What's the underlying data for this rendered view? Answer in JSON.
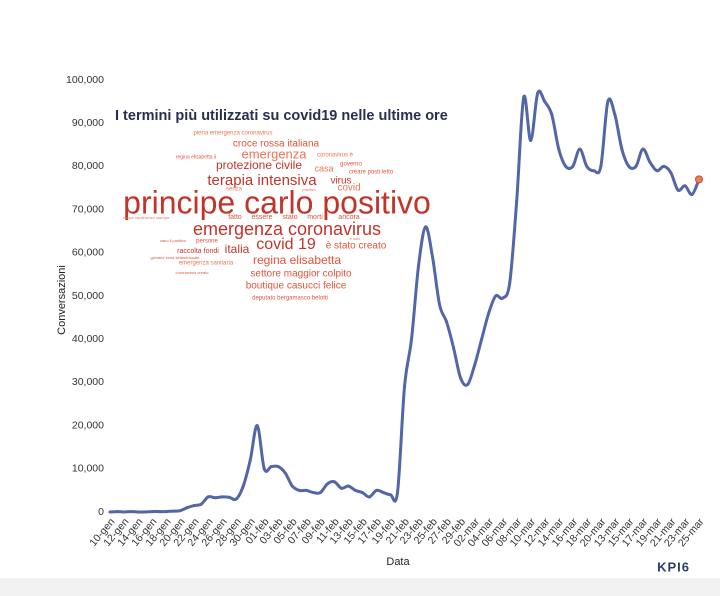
{
  "chart_data": {
    "type": "line",
    "y_label": "Conversazioni",
    "x_label": "Data",
    "categories": [
      "10-gen",
      null,
      "12-gen",
      null,
      "14-gen",
      null,
      "16-gen",
      null,
      "18-gen",
      null,
      "20-gen",
      null,
      "22-gen",
      null,
      "24-gen",
      null,
      "26-gen",
      null,
      "28-gen",
      null,
      "30-gen",
      null,
      "01-feb",
      null,
      "03-feb",
      null,
      "05-feb",
      null,
      "07-feb",
      null,
      "09-feb",
      null,
      "11-feb",
      null,
      "13-feb",
      null,
      "15-feb",
      null,
      "17-feb",
      null,
      "19-feb",
      null,
      "21-feb",
      null,
      "23-feb",
      null,
      "25-feb",
      null,
      "27-feb",
      null,
      "29-feb",
      null,
      "02-mar",
      null,
      "04-mar",
      null,
      "06-mar",
      null,
      "08-mar",
      null,
      "10-mar",
      null,
      "12-mar",
      null,
      "14-mar",
      null,
      "16-mar",
      null,
      "18-mar",
      null,
      "20-mar",
      null,
      "13-mar",
      null,
      "15-mar",
      null,
      "17-mar",
      null,
      "19-mar",
      null,
      "21-mar",
      null,
      "23-mar",
      null,
      "25-mar"
    ],
    "series": [
      {
        "color": "#5266a8",
        "last_point_color": "#f07a5a",
        "values": [
          0,
          100,
          0,
          100,
          0,
          0,
          100,
          100,
          100,
          200,
          300,
          1000,
          1500,
          1800,
          3500,
          3300,
          3500,
          3400,
          3000,
          6000,
          12000,
          20000,
          10000,
          10500,
          10500,
          9000,
          6000,
          5000,
          5000,
          4500,
          4500,
          6500,
          7000,
          5500,
          6000,
          5000,
          4500,
          3500,
          5000,
          4500,
          4000,
          4500,
          29000,
          40000,
          57000,
          66000,
          59000,
          48000,
          44000,
          38000,
          31000,
          29500,
          34000,
          40000,
          46000,
          50000,
          49500,
          53000,
          72000,
          96000,
          86000,
          97000,
          95000,
          92000,
          84000,
          80000,
          80000,
          84000,
          80000,
          79000,
          80000,
          95000,
          92000,
          84000,
          80000,
          80000,
          84000,
          81000,
          79000,
          80000,
          78500,
          74500,
          75500,
          73500,
          77000
        ]
      }
    ],
    "ylim": [
      0,
      100000
    ],
    "yticks": [
      0,
      {
        "value": 10000,
        "label": "10,000"
      },
      {
        "value": 20000,
        "label": "20,000"
      },
      {
        "value": 30000,
        "label": "30,000"
      },
      {
        "value": 40000,
        "label": "40,000"
      },
      {
        "value": 50000,
        "label": "50,000"
      },
      {
        "value": 60000,
        "label": "60,000"
      },
      {
        "value": 70000,
        "label": "70,000"
      },
      {
        "value": 80000,
        "label": "80,000"
      },
      {
        "value": 90000,
        "label": "90,000"
      },
      {
        "value": 100000,
        "label": "100,000"
      }
    ],
    "grid": false
  },
  "word_cloud": {
    "title": "I termini più utilizzati su covid19 nelle ultime ore",
    "words": [
      "piena emergenza coronavirus",
      "croce rossa italiana",
      "emergenza",
      "coronavirus è",
      "regina elisabetta ii",
      "governo",
      "protezione civile",
      "casa",
      "creare posti letto",
      "terapia intensiva",
      "virus",
      "senza",
      "positivo",
      "covid",
      "principe carlo positivo",
      "fatto",
      "essere",
      "stato",
      "morti",
      "ancora",
      "nuove conferenze stampa",
      "emergenza coronavirus",
      "è solo",
      "carlo il positivo",
      "persone",
      "covid 19",
      "è stato creato",
      "raccolta fondi",
      "italia",
      "giovane zona settentrionale",
      "regina elisabetta",
      "emergenza sanitaria",
      "settore maggior colpito",
      "coronavirus creato",
      "boutique casucci felice",
      "deputato bergamasco belotti"
    ]
  },
  "brand": "KPI6"
}
